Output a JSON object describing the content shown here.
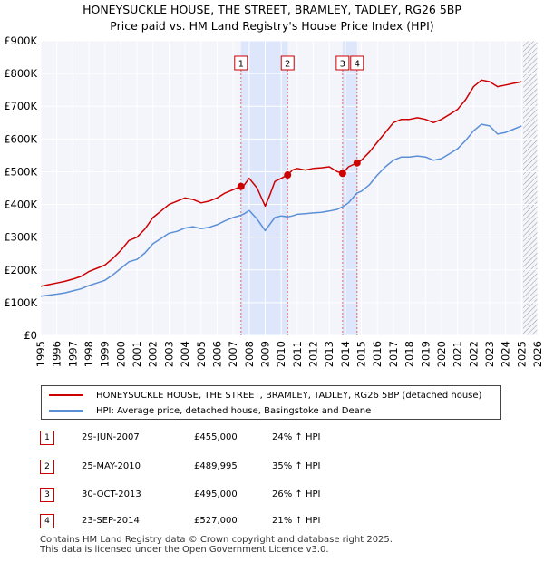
{
  "chart_data": {
    "type": "line",
    "title": "HONEYSUCKLE HOUSE, THE STREET, BRAMLEY, TADLEY, RG26 5BP",
    "subtitle": "Price paid vs. HM Land Registry's House Price Index (HPI)",
    "xlabel": "",
    "ylabel": "",
    "xlim": [
      1995,
      2026
    ],
    "ylim": [
      0,
      900000
    ],
    "x_ticks": [
      "1995",
      "1996",
      "1997",
      "1998",
      "1999",
      "2000",
      "2001",
      "2002",
      "2003",
      "2004",
      "2005",
      "2006",
      "2007",
      "2008",
      "2009",
      "2010",
      "2011",
      "2012",
      "2013",
      "2014",
      "2015",
      "2016",
      "2017",
      "2018",
      "2019",
      "2020",
      "2021",
      "2022",
      "2023",
      "2024",
      "2025",
      "2026"
    ],
    "y_ticks": [
      {
        "value": 0,
        "label": "£0"
      },
      {
        "value": 100000,
        "label": "£100K"
      },
      {
        "value": 200000,
        "label": "£200K"
      },
      {
        "value": 300000,
        "label": "£300K"
      },
      {
        "value": 400000,
        "label": "£400K"
      },
      {
        "value": 500000,
        "label": "£500K"
      },
      {
        "value": 600000,
        "label": "£600K"
      },
      {
        "value": 700000,
        "label": "£700K"
      },
      {
        "value": 800000,
        "label": "£800K"
      },
      {
        "value": 900000,
        "label": "£900K"
      }
    ],
    "grid": true,
    "shaded_ranges": [
      [
        2007.49,
        2010.4
      ],
      [
        2013.83,
        2014.73
      ]
    ],
    "forecast_start": 2025.1,
    "series": [
      {
        "name": "HONEYSUCKLE HOUSE, THE STREET, BRAMLEY, TADLEY, RG26 5BP (detached house)",
        "color": "#cc0000",
        "x": [
          1995.0,
          1995.5,
          1996.0,
          1996.5,
          1997.0,
          1997.5,
          1998.0,
          1998.5,
          1999.0,
          1999.5,
          2000.0,
          2000.5,
          2001.0,
          2001.5,
          2002.0,
          2002.5,
          2003.0,
          2003.5,
          2004.0,
          2004.5,
          2005.0,
          2005.5,
          2006.0,
          2006.5,
          2007.0,
          2007.49,
          2007.7,
          2008.0,
          2008.5,
          2009.0,
          2009.3,
          2009.6,
          2010.0,
          2010.4,
          2010.7,
          2011.0,
          2011.5,
          2012.0,
          2012.5,
          2013.0,
          2013.5,
          2013.83,
          2014.2,
          2014.73,
          2015.0,
          2015.5,
          2016.0,
          2016.5,
          2017.0,
          2017.5,
          2018.0,
          2018.5,
          2019.0,
          2019.5,
          2020.0,
          2020.5,
          2021.0,
          2021.5,
          2022.0,
          2022.5,
          2023.0,
          2023.5,
          2024.0,
          2024.5,
          2025.0
        ],
        "values": [
          150000,
          155000,
          160000,
          165000,
          172000,
          180000,
          195000,
          205000,
          215000,
          235000,
          260000,
          290000,
          300000,
          325000,
          360000,
          380000,
          400000,
          410000,
          420000,
          415000,
          405000,
          410000,
          420000,
          435000,
          445000,
          455000,
          460000,
          480000,
          450000,
          395000,
          430000,
          470000,
          480000,
          489995,
          505000,
          510000,
          505000,
          510000,
          512000,
          515000,
          500000,
          495000,
          515000,
          527000,
          535000,
          560000,
          590000,
          620000,
          650000,
          660000,
          660000,
          665000,
          660000,
          650000,
          660000,
          675000,
          690000,
          720000,
          760000,
          780000,
          775000,
          760000,
          765000,
          770000,
          775000
        ]
      },
      {
        "name": "HPI: Average price, detached house, Basingstoke and Deane",
        "color": "#5b8fd6",
        "x": [
          1995.0,
          1995.5,
          1996.0,
          1996.5,
          1997.0,
          1997.5,
          1998.0,
          1998.5,
          1999.0,
          1999.5,
          2000.0,
          2000.5,
          2001.0,
          2001.5,
          2002.0,
          2002.5,
          2003.0,
          2003.5,
          2004.0,
          2004.5,
          2005.0,
          2005.5,
          2006.0,
          2006.5,
          2007.0,
          2007.49,
          2007.7,
          2008.0,
          2008.5,
          2009.0,
          2009.3,
          2009.6,
          2010.0,
          2010.4,
          2010.7,
          2011.0,
          2011.5,
          2012.0,
          2012.5,
          2013.0,
          2013.5,
          2013.83,
          2014.2,
          2014.73,
          2015.0,
          2015.5,
          2016.0,
          2016.5,
          2017.0,
          2017.5,
          2018.0,
          2018.5,
          2019.0,
          2019.5,
          2020.0,
          2020.5,
          2021.0,
          2021.5,
          2022.0,
          2022.5,
          2023.0,
          2023.5,
          2024.0,
          2024.5,
          2025.0
        ],
        "values": [
          120000,
          123000,
          126000,
          130000,
          136000,
          142000,
          152000,
          160000,
          168000,
          185000,
          205000,
          225000,
          232000,
          252000,
          280000,
          296000,
          312000,
          318000,
          328000,
          332000,
          326000,
          330000,
          338000,
          350000,
          360000,
          367000,
          372000,
          382000,
          355000,
          320000,
          340000,
          360000,
          365000,
          362000,
          365000,
          370000,
          372000,
          374000,
          376000,
          380000,
          385000,
          393000,
          405000,
          435000,
          440000,
          460000,
          490000,
          515000,
          535000,
          545000,
          545000,
          548000,
          545000,
          535000,
          540000,
          555000,
          570000,
          595000,
          625000,
          645000,
          640000,
          615000,
          620000,
          630000,
          640000
        ]
      }
    ],
    "transactions": [
      {
        "marker": "1",
        "date": "29-JUN-2007",
        "price": "£455,000",
        "hpi_change": "24% ↑ HPI",
        "x": 2007.49,
        "y": 455000
      },
      {
        "marker": "2",
        "date": "25-MAY-2010",
        "price": "£489,995",
        "hpi_change": "35% ↑ HPI",
        "x": 2010.4,
        "y": 489995
      },
      {
        "marker": "3",
        "date": "30-OCT-2013",
        "price": "£495,000",
        "hpi_change": "26% ↑ HPI",
        "x": 2013.83,
        "y": 495000
      },
      {
        "marker": "4",
        "date": "23-SEP-2014",
        "price": "£527,000",
        "hpi_change": "21% ↑ HPI",
        "x": 2014.73,
        "y": 527000
      }
    ]
  },
  "legend": {
    "property_label": "HONEYSUCKLE HOUSE, THE STREET, BRAMLEY, TADLEY, RG26 5BP (detached house)",
    "hpi_label": "HPI: Average price, detached house, Basingstoke and Deane",
    "property_color": "#cc0000",
    "hpi_color": "#5b8fd6"
  },
  "footer": {
    "line1": "Contains HM Land Registry data © Crown copyright and database right 2025.",
    "line2": "This data is licensed under the Open Government Licence v3.0."
  }
}
